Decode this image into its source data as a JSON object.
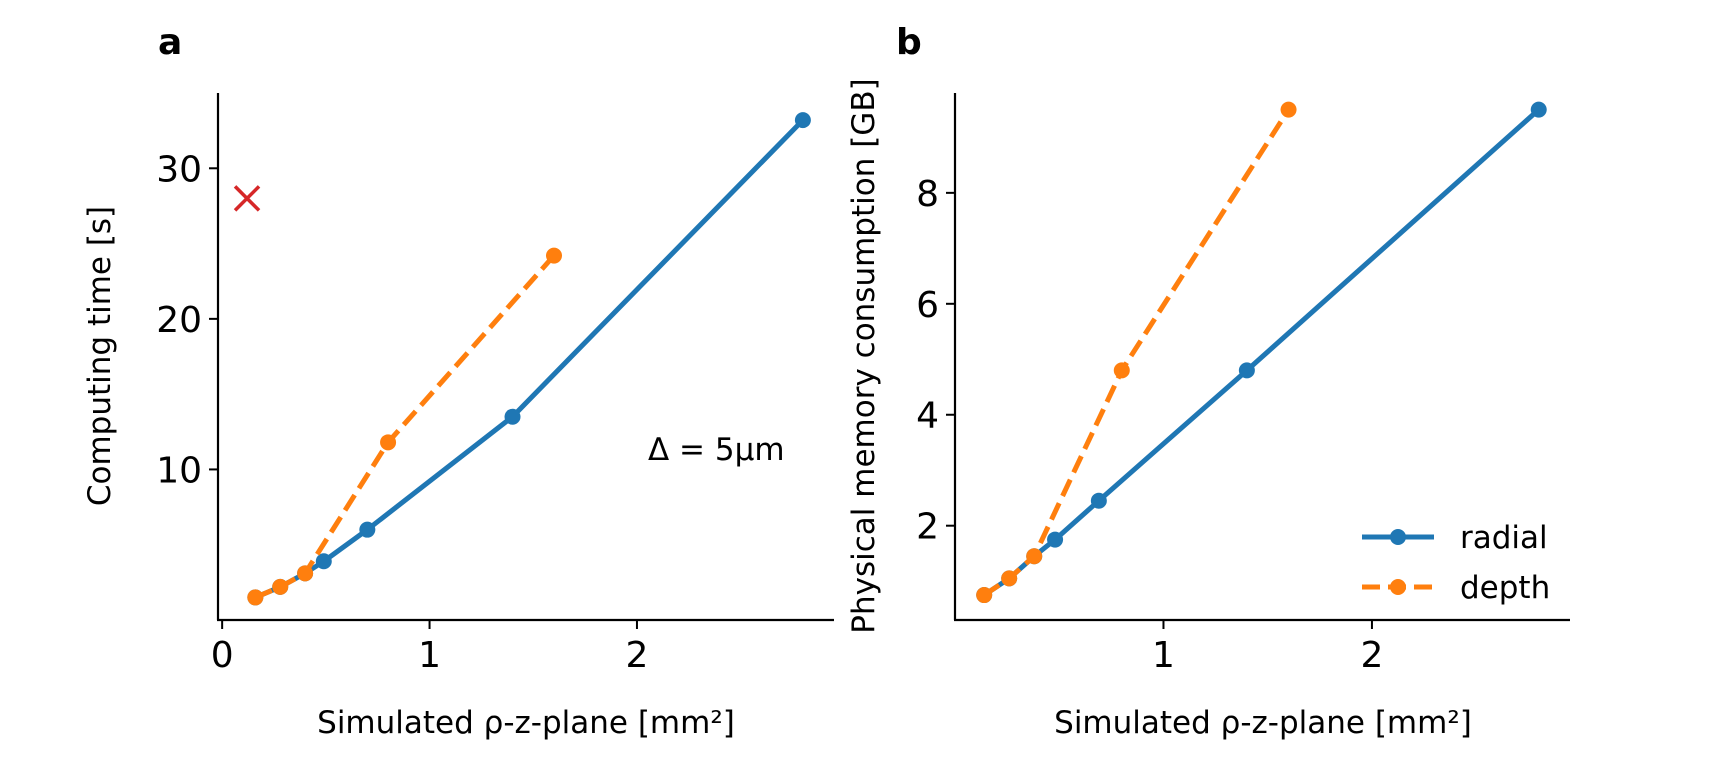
{
  "chart_data": [
    {
      "type": "line",
      "panel_label": "a",
      "xlabel": "Simulated ρ-z-plane [mm²]",
      "ylabel": "Computing time [s]",
      "xlim": [
        -0.02,
        2.95
      ],
      "ylim": [
        0,
        35
      ],
      "xticks": [
        0,
        1,
        2
      ],
      "xtick_labels": [
        "0",
        "1",
        "2"
      ],
      "yticks": [
        10,
        20,
        30
      ],
      "ytick_labels": [
        "10",
        "20",
        "30"
      ],
      "annotation": "Δ = 5μm",
      "series": [
        {
          "name": "radial",
          "color": "#1f77b4",
          "linestyle": "solid",
          "x": [
            0.16,
            0.28,
            0.4,
            0.49,
            0.7,
            1.4,
            2.8
          ],
          "y": [
            1.5,
            2.2,
            3.1,
            3.9,
            6.0,
            13.5,
            33.2
          ]
        },
        {
          "name": "depth",
          "color": "#ff7f0e",
          "linestyle": "dashed",
          "x": [
            0.16,
            0.28,
            0.4,
            0.8,
            1.6
          ],
          "y": [
            1.5,
            2.2,
            3.1,
            11.8,
            24.2
          ]
        }
      ],
      "markers": [
        {
          "symbol": "x",
          "color": "#d62728",
          "x": 0.12,
          "y": 28.0
        }
      ]
    },
    {
      "type": "line",
      "panel_label": "b",
      "xlabel": "Simulated ρ-z-plane [mm²]",
      "ylabel": "Physical memory consumption [GB]",
      "xlim": [
        0.0,
        2.95
      ],
      "ylim": [
        0.3,
        9.8
      ],
      "xticks": [
        1,
        2
      ],
      "xtick_labels": [
        "1",
        "2"
      ],
      "yticks": [
        2,
        4,
        6,
        8
      ],
      "ytick_labels": [
        "2",
        "4",
        "6",
        "8"
      ],
      "legend": {
        "placement": "lower-right",
        "entries": [
          "radial",
          "depth"
        ]
      },
      "series": [
        {
          "name": "radial",
          "color": "#1f77b4",
          "linestyle": "solid",
          "x": [
            0.14,
            0.26,
            0.38,
            0.48,
            0.69,
            1.4,
            2.8
          ],
          "y": [
            0.75,
            1.05,
            1.45,
            1.75,
            2.45,
            4.8,
            9.5
          ]
        },
        {
          "name": "depth",
          "color": "#ff7f0e",
          "linestyle": "dashed",
          "x": [
            0.14,
            0.26,
            0.38,
            0.8,
            1.6
          ],
          "y": [
            0.75,
            1.05,
            1.45,
            4.8,
            9.5
          ]
        }
      ]
    }
  ]
}
